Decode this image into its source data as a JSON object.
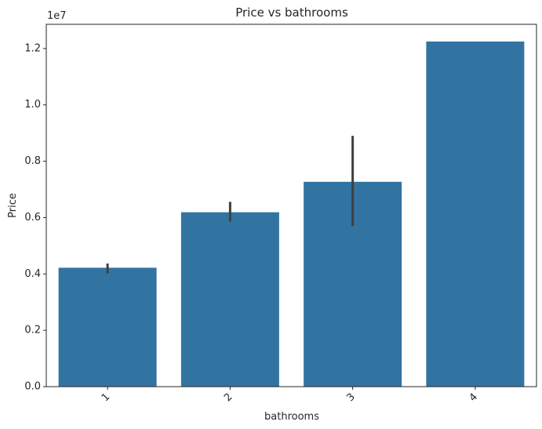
{
  "chart_data": {
    "type": "bar",
    "title": "Price vs bathrooms",
    "xlabel": "bathrooms",
    "ylabel": "Price",
    "y_scale_note": "1e7",
    "categories": [
      "1",
      "2",
      "3",
      "4"
    ],
    "values": [
      4220000,
      6190000,
      7270000,
      12250000
    ],
    "error_bars": [
      {
        "low": 4020000,
        "high": 4370000
      },
      {
        "low": 5860000,
        "high": 6560000
      },
      {
        "low": 5700000,
        "high": 8900000
      },
      null
    ],
    "ylim": [
      0,
      12860000
    ],
    "y_ticks": [
      0,
      2000000,
      4000000,
      6000000,
      8000000,
      10000000,
      12000000
    ],
    "y_tick_labels": [
      "0.0",
      "0.2",
      "0.4",
      "0.6",
      "0.8",
      "1.0",
      "1.2"
    ],
    "x_tick_rotation_deg": 45,
    "bar_color": "#3274a1",
    "error_color": "#3f3f3f",
    "grid": false,
    "legend": "none"
  }
}
